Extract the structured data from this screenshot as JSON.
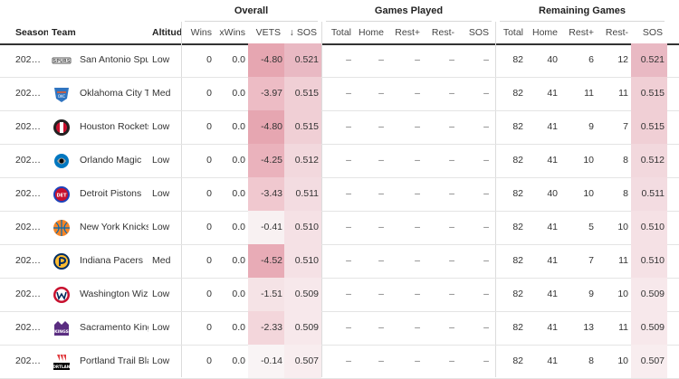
{
  "groups": {
    "overall": "Overall",
    "games_played": "Games Played",
    "remaining_games": "Remaining Games"
  },
  "columns": {
    "season": "Season",
    "team": "Team",
    "altitude": "Altitud",
    "wins": "Wins",
    "xwins": "xWins",
    "vets": "VETS",
    "sos": "↓ SOS",
    "gp_total": "Total",
    "gp_home": "Home",
    "gp_rest_plus": "Rest+",
    "gp_rest_minus": "Rest-",
    "gp_sos": "SOS",
    "rg_total": "Total",
    "rg_home": "Home",
    "rg_rest_plus": "Rest+",
    "rg_rest_minus": "Rest-",
    "rg_sos": "SOS"
  },
  "colors": {
    "vets_strong": "#e6a6b1",
    "vets_mid": "#f3d3d9",
    "vets_weak": "#f7f1f2",
    "sos_strong": "#e9b9c3",
    "sos_mid": "#f0cfd5",
    "sos_weak": "#f7e8eb"
  },
  "rows": [
    {
      "season": "202…",
      "team": "San Antonio Spu",
      "logo": "spurs-logo-icon",
      "logo_color": "#555555",
      "altitude": "Low",
      "wins": "0",
      "xwins": "0.0",
      "vets": "-4.80",
      "vets_color": "#e6a6b1",
      "sos": "0.521",
      "sos_color": "#e9b9c3",
      "gp_total": "–",
      "gp_home": "–",
      "gp_rest_plus": "–",
      "gp_rest_minus": "–",
      "gp_sos": "–",
      "rg_total": "82",
      "rg_home": "40",
      "rg_rest_plus": "6",
      "rg_rest_minus": "12",
      "rg_sos": "0.521",
      "rg_sos_color": "#e9b9c3"
    },
    {
      "season": "202…",
      "team": "Oklahoma City T",
      "logo": "thunder-logo-icon",
      "logo_color": "#2f74c0",
      "altitude": "Med",
      "wins": "0",
      "xwins": "0.0",
      "vets": "-3.97",
      "vets_color": "#edbcc5",
      "sos": "0.515",
      "sos_color": "#f0cfd5",
      "gp_total": "–",
      "gp_home": "–",
      "gp_rest_plus": "–",
      "gp_rest_minus": "–",
      "gp_sos": "–",
      "rg_total": "82",
      "rg_home": "41",
      "rg_rest_plus": "11",
      "rg_rest_minus": "11",
      "rg_sos": "0.515",
      "rg_sos_color": "#f0cfd5"
    },
    {
      "season": "202…",
      "team": "Houston Rockets",
      "logo": "rockets-logo-icon",
      "logo_color": "#c8102e",
      "altitude": "Low",
      "wins": "0",
      "xwins": "0.0",
      "vets": "-4.80",
      "vets_color": "#e6a6b1",
      "sos": "0.515",
      "sos_color": "#f0cfd5",
      "gp_total": "–",
      "gp_home": "–",
      "gp_rest_plus": "–",
      "gp_rest_minus": "–",
      "gp_sos": "–",
      "rg_total": "82",
      "rg_home": "41",
      "rg_rest_plus": "9",
      "rg_rest_minus": "7",
      "rg_sos": "0.515",
      "rg_sos_color": "#f0cfd5"
    },
    {
      "season": "202…",
      "team": "Orlando Magic",
      "logo": "magic-logo-icon",
      "logo_color": "#0077c0",
      "altitude": "Low",
      "wins": "0",
      "xwins": "0.0",
      "vets": "-4.25",
      "vets_color": "#eab2bc",
      "sos": "0.512",
      "sos_color": "#f2d8dd",
      "gp_total": "–",
      "gp_home": "–",
      "gp_rest_plus": "–",
      "gp_rest_minus": "–",
      "gp_sos": "–",
      "rg_total": "82",
      "rg_home": "41",
      "rg_rest_plus": "10",
      "rg_rest_minus": "8",
      "rg_sos": "0.512",
      "rg_sos_color": "#f2d8dd"
    },
    {
      "season": "202…",
      "team": "Detroit Pistons",
      "logo": "pistons-logo-icon",
      "logo_color": "#c8102e",
      "altitude": "Low",
      "wins": "0",
      "xwins": "0.0",
      "vets": "-3.43",
      "vets_color": "#f0c8cf",
      "sos": "0.511",
      "sos_color": "#f3dce1",
      "gp_total": "–",
      "gp_home": "–",
      "gp_rest_plus": "–",
      "gp_rest_minus": "–",
      "gp_sos": "–",
      "rg_total": "82",
      "rg_home": "40",
      "rg_rest_plus": "10",
      "rg_rest_minus": "8",
      "rg_sos": "0.511",
      "rg_sos_color": "#f3dce1"
    },
    {
      "season": "202…",
      "team": "New York Knicks",
      "logo": "knicks-logo-icon",
      "logo_color": "#f58426",
      "altitude": "Low",
      "wins": "0",
      "xwins": "0.0",
      "vets": "-0.41",
      "vets_color": "#f8f1f2",
      "sos": "0.510",
      "sos_color": "#f5e1e5",
      "gp_total": "–",
      "gp_home": "–",
      "gp_rest_plus": "–",
      "gp_rest_minus": "–",
      "gp_sos": "–",
      "rg_total": "82",
      "rg_home": "41",
      "rg_rest_plus": "5",
      "rg_rest_minus": "10",
      "rg_sos": "0.510",
      "rg_sos_color": "#f5e1e5"
    },
    {
      "season": "202…",
      "team": "Indiana Pacers",
      "logo": "pacers-logo-icon",
      "logo_color": "#fdbb30",
      "altitude": "Med",
      "wins": "0",
      "xwins": "0.0",
      "vets": "-4.52",
      "vets_color": "#e8abb6",
      "sos": "0.510",
      "sos_color": "#f5e1e5",
      "gp_total": "–",
      "gp_home": "–",
      "gp_rest_plus": "–",
      "gp_rest_minus": "–",
      "gp_sos": "–",
      "rg_total": "82",
      "rg_home": "41",
      "rg_rest_plus": "7",
      "rg_rest_minus": "11",
      "rg_sos": "0.510",
      "rg_sos_color": "#f5e1e5"
    },
    {
      "season": "202…",
      "team": "Washington Wiz",
      "logo": "wizards-logo-icon",
      "logo_color": "#c8102e",
      "altitude": "Low",
      "wins": "0",
      "xwins": "0.0",
      "vets": "-1.51",
      "vets_color": "#f5e3e6",
      "sos": "0.509",
      "sos_color": "#f7e8eb",
      "gp_total": "–",
      "gp_home": "–",
      "gp_rest_plus": "–",
      "gp_rest_minus": "–",
      "gp_sos": "–",
      "rg_total": "82",
      "rg_home": "41",
      "rg_rest_plus": "9",
      "rg_rest_minus": "10",
      "rg_sos": "0.509",
      "rg_sos_color": "#f7e8eb"
    },
    {
      "season": "202…",
      "team": "Sacramento King",
      "logo": "kings-logo-icon",
      "logo_color": "#5a2d81",
      "altitude": "Low",
      "wins": "0",
      "xwins": "0.0",
      "vets": "-2.33",
      "vets_color": "#f3d6db",
      "sos": "0.509",
      "sos_color": "#f7e8eb",
      "gp_total": "–",
      "gp_home": "–",
      "gp_rest_plus": "–",
      "gp_rest_minus": "–",
      "gp_sos": "–",
      "rg_total": "82",
      "rg_home": "41",
      "rg_rest_plus": "13",
      "rg_rest_minus": "11",
      "rg_sos": "0.509",
      "rg_sos_color": "#f7e8eb"
    },
    {
      "season": "202…",
      "team": "Portland Trail Bla",
      "logo": "blazers-logo-icon",
      "logo_color": "#e03a3e",
      "altitude": "Low",
      "wins": "0",
      "xwins": "0.0",
      "vets": "-0.14",
      "vets_color": "#f9f4f5",
      "sos": "0.507",
      "sos_color": "#f8edef",
      "gp_total": "–",
      "gp_home": "–",
      "gp_rest_plus": "–",
      "gp_rest_minus": "–",
      "gp_sos": "–",
      "rg_total": "82",
      "rg_home": "41",
      "rg_rest_plus": "8",
      "rg_rest_minus": "10",
      "rg_sos": "0.507",
      "rg_sos_color": "#f8edef"
    }
  ]
}
